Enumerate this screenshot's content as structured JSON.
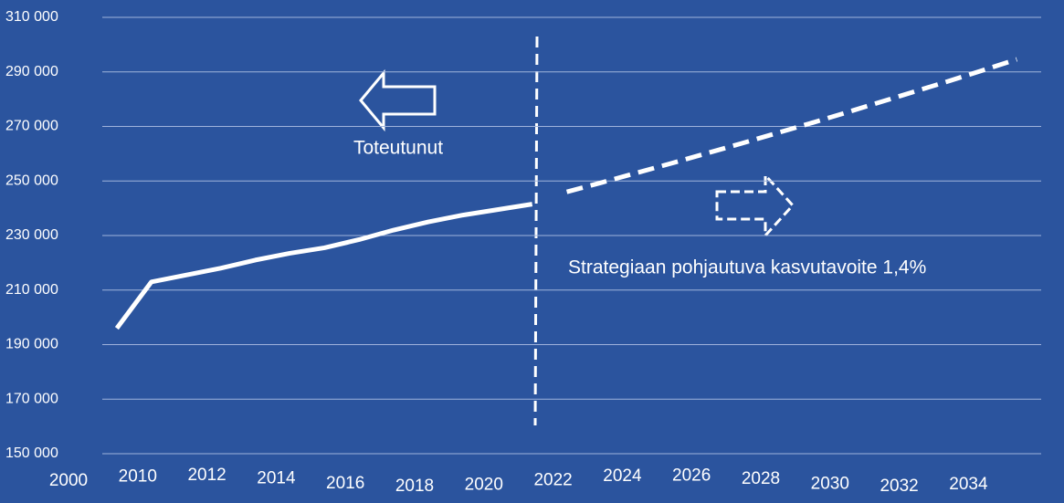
{
  "chart_data": {
    "type": "line",
    "categories": [
      "2000",
      null,
      "2010",
      null,
      "2012",
      null,
      "2014",
      null,
      "2016",
      null,
      "2018",
      null,
      "2020",
      null,
      "2022",
      null,
      "2024",
      null,
      "2026",
      null,
      "2028",
      null,
      "2030",
      null,
      "2032",
      null,
      "2034",
      null
    ],
    "series": [
      {
        "color": "#ffffff",
        "dashed": false,
        "values": [
          null,
          196000,
          213000,
          215500,
          218000,
          221000,
          223500,
          225500,
          228500,
          232000,
          235000,
          237500,
          239500,
          241500,
          null,
          null,
          null,
          null,
          null,
          null,
          null,
          null,
          null,
          null,
          null,
          null,
          null,
          null
        ]
      },
      {
        "color": "#ffffff",
        "dashed": true,
        "values": [
          null,
          null,
          null,
          null,
          null,
          null,
          null,
          null,
          null,
          null,
          null,
          null,
          null,
          null,
          246000,
          249400,
          252900,
          256400,
          260000,
          263600,
          267300,
          271000,
          274800,
          278700,
          282600,
          286500,
          290500,
          294600
        ]
      }
    ],
    "ylim": [
      150000,
      310000
    ],
    "yticks": [
      {
        "value": 150000,
        "label": "150 000"
      },
      {
        "value": 170000,
        "label": "170 000"
      },
      {
        "value": 190000,
        "label": "190 000"
      },
      {
        "value": 210000,
        "label": "210 000"
      },
      {
        "value": 230000,
        "label": "230 000"
      },
      {
        "value": 250000,
        "label": "250 000"
      },
      {
        "value": 270000,
        "label": "270 000"
      },
      {
        "value": 290000,
        "label": "290 000"
      },
      {
        "value": 310000,
        "label": "310 000"
      }
    ],
    "grid": true,
    "annotations": [
      "Toteutunut",
      "Strategiaan pohjautuva kasvutavoite 1,4%"
    ]
  }
}
